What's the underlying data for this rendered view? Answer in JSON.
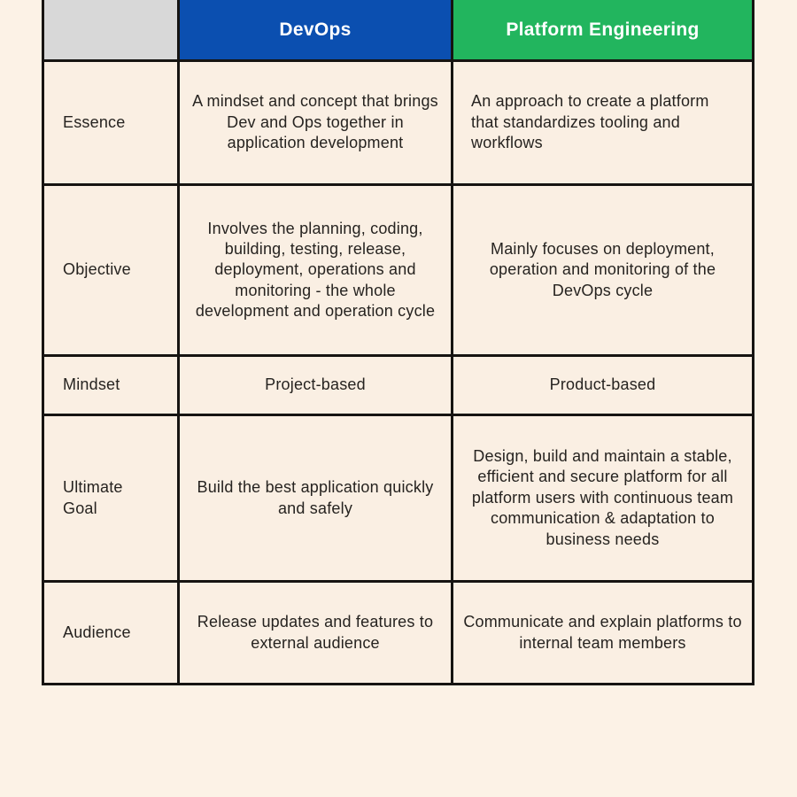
{
  "page": {
    "background": "#fcf2e6"
  },
  "table": {
    "colors": {
      "devops_header_bg": "#0b4fb0",
      "platform_header_bg": "#22b55e",
      "corner_bg": "#d8d8d8",
      "cell_bg": "#faefe3",
      "border": "#161412",
      "header_text": "#ffffff",
      "body_text": "#262320"
    },
    "header": {
      "corner": "",
      "devops": "DevOps",
      "platform": "Platform Engineering"
    },
    "rows": [
      {
        "label": "Essence",
        "devops": "A mindset and concept that brings Dev and Ops together in application development",
        "platform": "An approach to create a platform that standardizes tooling and workflows"
      },
      {
        "label": "Objective",
        "devops": "Involves the planning, coding, building, testing, release, deployment, operations and monitoring - the whole development and operation cycle",
        "platform": "Mainly focuses on deployment, operation and monitoring of the DevOps cycle"
      },
      {
        "label": "Mindset",
        "devops": "Project-based",
        "platform": "Product-based"
      },
      {
        "label": "Ultimate Goal",
        "devops": "Build the best application quickly and safely",
        "platform": "Design, build and maintain a stable, efficient and secure platform for all platform users with continuous team communication & adaptation to business needs"
      },
      {
        "label": "Audience",
        "devops": "Release updates and features to external audience",
        "platform": "Communicate and explain platforms to internal team members"
      }
    ]
  }
}
